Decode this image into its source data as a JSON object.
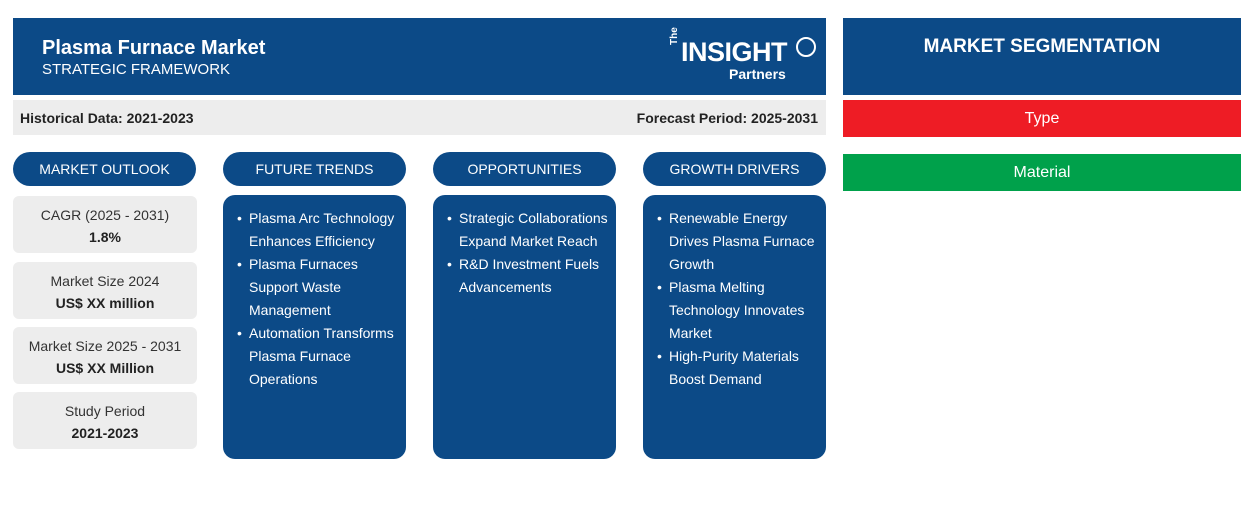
{
  "header": {
    "title": "Plasma Furnace Market",
    "subtitle": "STRATEGIC FRAMEWORK",
    "logo": {
      "the": "The",
      "insight": "INSIGHT",
      "partners": "Partners"
    }
  },
  "databar": {
    "historical": "Historical Data: 2021-2023",
    "forecast": "Forecast Period: 2025-2031"
  },
  "columns": {
    "outlook": "MARKET OUTLOOK",
    "trends": "FUTURE TRENDS",
    "opportunities": "OPPORTUNITIES",
    "drivers": "GROWTH DRIVERS"
  },
  "outlook_stats": [
    {
      "label": "CAGR (2025 - 2031)",
      "value": "1.8%"
    },
    {
      "label": "Market Size 2024",
      "value": "US$ XX million"
    },
    {
      "label": "Market Size 2025 - 2031",
      "value": "US$ XX Million"
    },
    {
      "label": "Study Period",
      "value": "2021-2023"
    }
  ],
  "trends": [
    "Plasma Arc Technology Enhances Efficiency",
    "Plasma Furnaces Support Waste Management",
    "Automation Transforms Plasma Furnace Operations"
  ],
  "opportunities": [
    "Strategic Collaborations Expand Market Reach",
    "R&D Investment Fuels Advancements"
  ],
  "drivers": [
    "Renewable Energy Drives Plasma Furnace Growth",
    "Plasma Melting Technology Innovates Market",
    "High-Purity Materials Boost Demand"
  ],
  "segmentation": {
    "title": "MARKET SEGMENTATION",
    "items": [
      {
        "label": "Type",
        "color": "#ee1c25"
      },
      {
        "label": "Material",
        "color": "#00a14b"
      }
    ]
  },
  "colors": {
    "primary": "#0c4a87",
    "panel_gray": "#ededed"
  }
}
